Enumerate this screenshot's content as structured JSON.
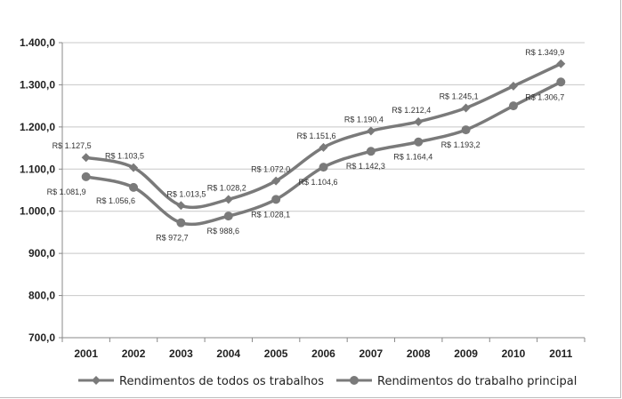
{
  "chart_data": {
    "type": "line",
    "title": "",
    "xlabel": "",
    "ylabel": "",
    "ylim": [
      700,
      1400
    ],
    "yticks": [
      "700,0",
      "800,0",
      "900,0",
      "1.000,0",
      "1.100,0",
      "1.200,0",
      "1.300,0",
      "1.400,0"
    ],
    "categories": [
      "2001",
      "2002",
      "2003",
      "2004",
      "2005",
      "2006",
      "2007",
      "2008",
      "2009",
      "2010",
      "2011"
    ],
    "grid": true,
    "legend_position": "bottom",
    "series": [
      {
        "name": "Rendimentos de todos os trabalhos",
        "color": "#7a7a7a",
        "marker": "diamond",
        "values": [
          1127.5,
          1103.5,
          1013.5,
          1028.2,
          1072.0,
          1151.6,
          1190.4,
          1212.4,
          1245.1,
          1297.0,
          1349.9
        ],
        "labels": [
          "R$ 1.127,5",
          "R$ 1.103,5",
          "R$ 1.013,5",
          "R$ 1.028,2",
          "R$ 1.072,0",
          "R$ 1.151,6",
          "R$ 1.190,4",
          "R$ 1.212,4",
          "R$ 1.245,1",
          null,
          "R$ 1.349,9"
        ]
      },
      {
        "name": "Rendimentos do trabalho principal",
        "color": "#7a7a7a",
        "marker": "circle",
        "values": [
          1081.9,
          1056.6,
          972.7,
          988.6,
          1028.1,
          1104.6,
          1142.3,
          1164.4,
          1193.2,
          1250.0,
          1306.7
        ],
        "labels": [
          "R$ 1.081,9",
          "R$ 1.056,6",
          "R$ 972,7",
          "R$ 988,6",
          "R$ 1.028,1",
          "R$ 1.104,6",
          "R$ 1.142,3",
          "R$ 1.164,4",
          "R$ 1.193,2",
          null,
          "R$ 1.306,7"
        ]
      }
    ]
  }
}
